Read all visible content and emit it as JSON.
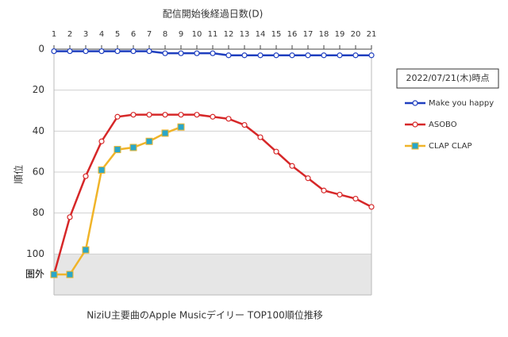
{
  "chart_data": {
    "type": "line",
    "x_label": "配信開始後経過日数(D)",
    "y_label": "順位",
    "caption": "NiziU主要曲のApple Musicデイリー TOP100順位推移",
    "date_note": "2022/07/21(木)時点",
    "x": [
      1,
      2,
      3,
      4,
      5,
      6,
      7,
      8,
      9,
      10,
      11,
      12,
      13,
      14,
      15,
      16,
      17,
      18,
      19,
      20,
      21
    ],
    "xlim": [
      1,
      21
    ],
    "xticks": [
      1,
      2,
      3,
      4,
      5,
      6,
      7,
      8,
      9,
      10,
      11,
      12,
      13,
      14,
      15,
      16,
      17,
      18,
      19,
      20,
      21
    ],
    "ylim": [
      0,
      120
    ],
    "y_inverted": true,
    "yticks": [
      0,
      20,
      40,
      60,
      80,
      100,
      {
        "value": 110,
        "label": "圏外"
      }
    ],
    "grid": true,
    "shaded_band": [
      100,
      120
    ],
    "series": [
      {
        "name": "Make you happy",
        "color": "#1f3fbf",
        "marker": "circle",
        "marker_color": "#ffffff",
        "values": [
          1,
          1,
          1,
          1,
          1,
          1,
          1,
          2,
          2,
          2,
          2,
          3,
          3,
          3,
          3,
          3,
          3,
          3,
          3,
          3,
          3
        ]
      },
      {
        "name": "ASOBO",
        "color": "#d62728",
        "marker": "circle",
        "marker_color": "#ffffff",
        "values": [
          110,
          82,
          62,
          45,
          33,
          32,
          32,
          32,
          32,
          32,
          33,
          34,
          37,
          43,
          50,
          57,
          63,
          69,
          71,
          73,
          77
        ]
      },
      {
        "name": "CLAP CLAP",
        "color": "#f0b429",
        "marker": "square",
        "marker_color": "#2aa7c9",
        "values": [
          110,
          110,
          98,
          59,
          49,
          48,
          45,
          41,
          38,
          null,
          null,
          null,
          null,
          null,
          null,
          null,
          null,
          null,
          null,
          null,
          null
        ]
      }
    ]
  }
}
